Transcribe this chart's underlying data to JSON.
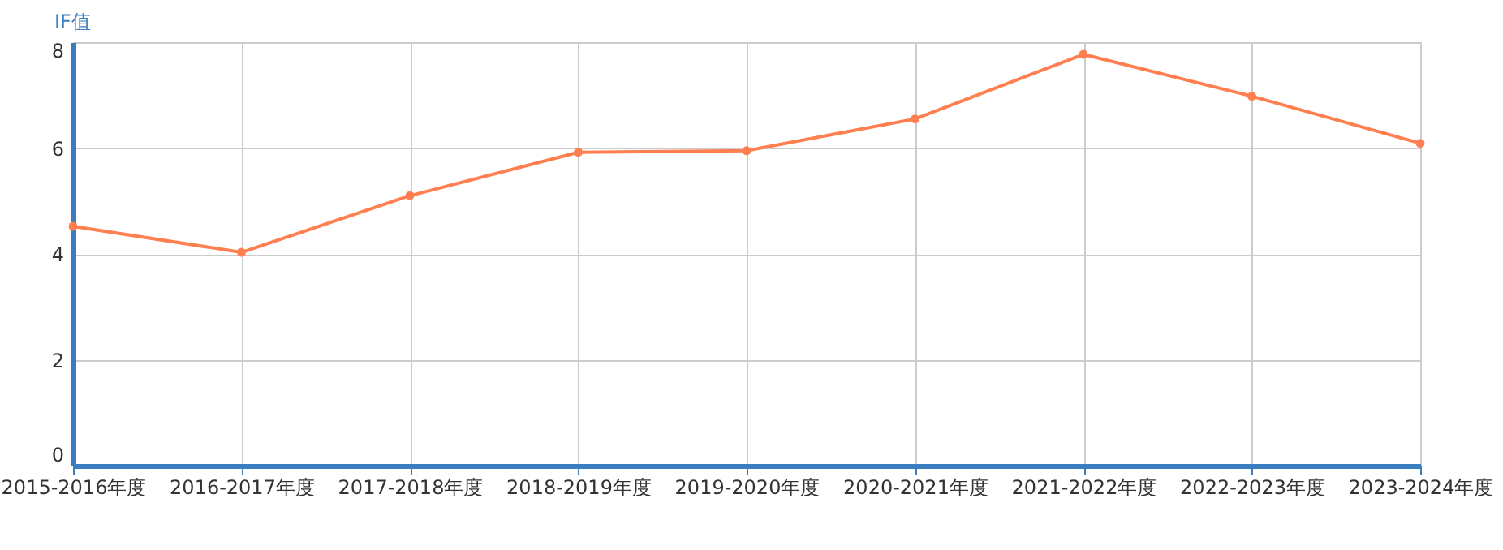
{
  "chart_data": {
    "type": "line",
    "ylabel": "IF值",
    "categories": [
      "2015-2016年度",
      "2016-2017年度",
      "2017-2018年度",
      "2018-2019年度",
      "2019-2020年度",
      "2020-2021年度",
      "2021-2022年度",
      "2022-2023年度",
      "2023-2024年度"
    ],
    "series": [
      {
        "color": "#ff7f50",
        "values": [
          4.52,
          4.03,
          5.1,
          5.92,
          5.95,
          6.55,
          7.77,
          6.98,
          6.09
        ]
      }
    ],
    "ylim": [
      0,
      8
    ],
    "yticks": [
      0,
      2,
      4,
      6,
      8
    ],
    "grid": true,
    "marker": "circle",
    "line_style": "solid"
  }
}
